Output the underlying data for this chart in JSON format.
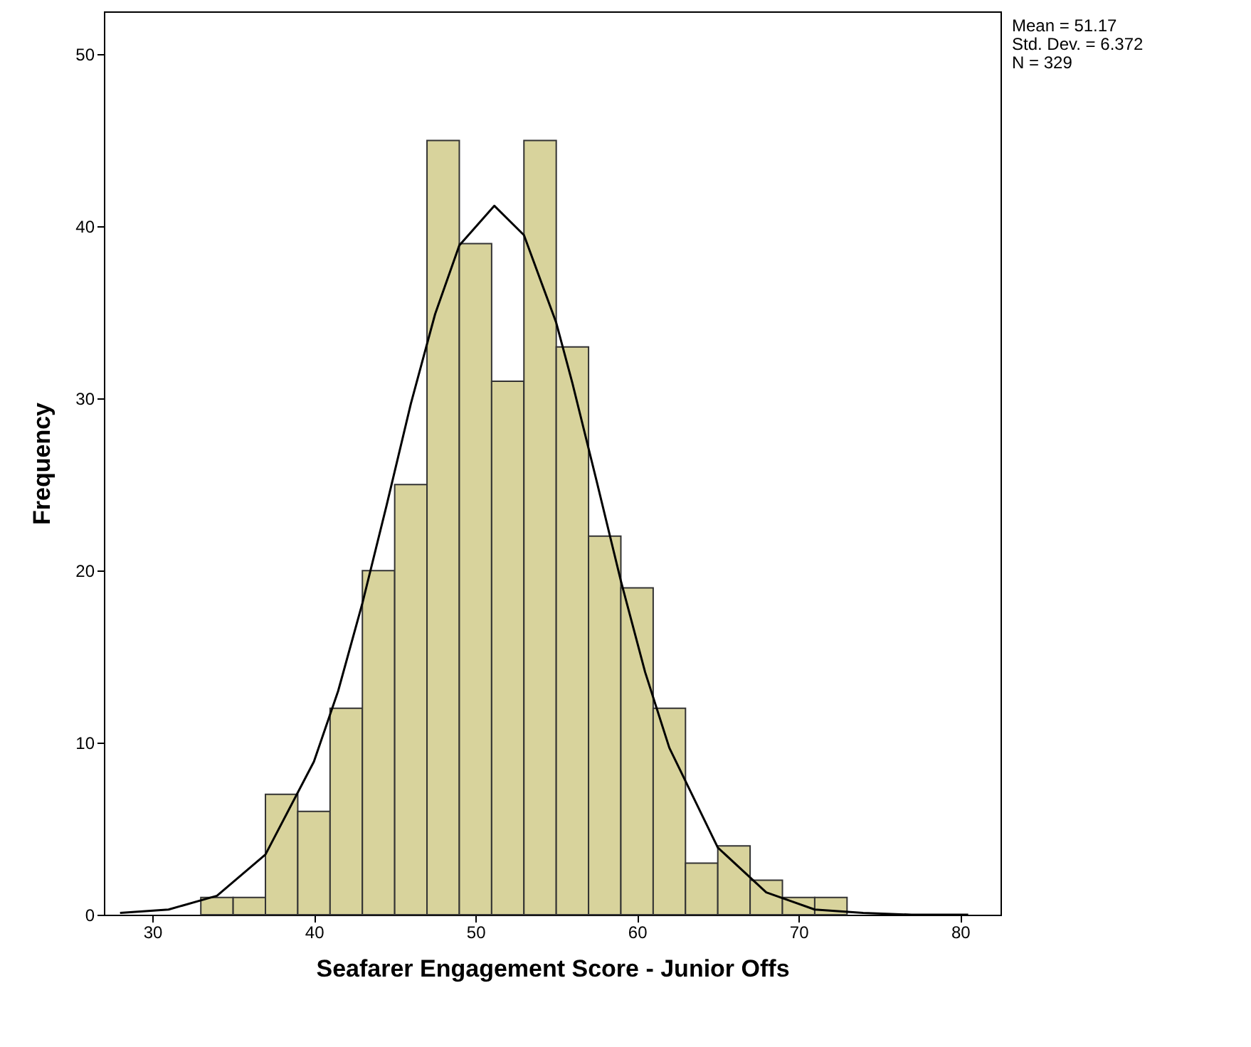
{
  "chart_data": {
    "type": "histogram",
    "xlabel": "Seafarer Engagement Score - Junior Offs",
    "ylabel": "Frequency",
    "bins": [
      33,
      35,
      37,
      39,
      41,
      43,
      45,
      47,
      49,
      51,
      53,
      55,
      57,
      59,
      61,
      63,
      65,
      67,
      69,
      71,
      73
    ],
    "values": [
      1,
      1,
      7,
      6,
      12,
      20,
      25,
      45,
      39,
      31,
      45,
      33,
      22,
      19,
      12,
      3,
      4,
      2,
      1,
      1
    ],
    "color": "#d8d39c",
    "series": [
      {
        "type": "line",
        "color": "#000000",
        "x": [
          28,
          31,
          34,
          37,
          40,
          41.5,
          43,
          44.5,
          46,
          47.5,
          49,
          51.17,
          53,
          55,
          56,
          57.5,
          59,
          60.5,
          62,
          65,
          68,
          71,
          74,
          77,
          80.5
        ],
        "values": [
          0.1,
          0.3,
          1.1,
          3.5,
          8.9,
          13,
          18.1,
          23.8,
          29.7,
          34.9,
          38.9,
          41.2,
          39.5,
          34.4,
          30.9,
          25.2,
          19.4,
          14.1,
          9.7,
          3.9,
          1.3,
          0.3,
          0.1,
          0,
          0
        ]
      }
    ],
    "xlim": [
      27,
      82.5
    ],
    "ylim": [
      0,
      52.5
    ],
    "xticks": [
      30,
      40,
      50,
      60,
      70,
      80
    ],
    "yticks": [
      0,
      10,
      20,
      30,
      40,
      50
    ],
    "annotations": [
      "Mean = 51.17",
      "Std. Dev. = 6.372",
      "N = 329"
    ]
  }
}
